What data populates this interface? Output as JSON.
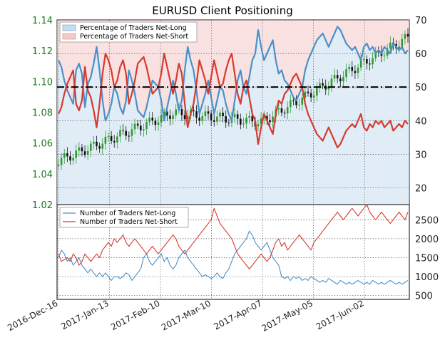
{
  "title": "EURUSD Client Positioning",
  "colors": {
    "long_fill": "#c7dcef",
    "short_fill": "#f6c9c9",
    "long_line": "#4a90c8",
    "short_line": "#d63a2f",
    "candle_up": "#2e9b2e",
    "candle_down": "#111111",
    "left_axis": "#1a7a1a"
  },
  "chart_data": [
    {
      "type": "line",
      "panel": "top",
      "title": "EURUSD Client Positioning",
      "y_left": {
        "ticks": [
          "1.02",
          "1.04",
          "1.06",
          "1.08",
          "1.10",
          "1.12",
          "1.14"
        ],
        "ylim": [
          1.02,
          1.14
        ]
      },
      "y_right": {
        "ticks": [
          "20",
          "30",
          "40",
          "50",
          "60",
          "70"
        ],
        "ylim": [
          15,
          70
        ]
      },
      "reference_line": 50,
      "legend": [
        "Percentage of Traders Net-Long",
        "Percentage of Traders Net-Short"
      ],
      "legend_position": "top-left",
      "x_ticks": [
        "2016-Dec-16",
        "2017-Jan-13",
        "2017-Feb-10",
        "2017-Mar-10",
        "2017-Apr-07",
        "2017-May-05",
        "2017-Jun-02"
      ],
      "series": [
        {
          "name": "Percentage of Traders Net-Long",
          "color": "#4a90c8",
          "values": [
            58,
            56,
            52,
            49,
            47,
            45,
            55,
            57,
            54,
            44,
            51,
            53,
            57,
            62,
            55,
            46,
            40,
            42,
            45,
            50,
            48,
            44,
            42,
            46,
            55,
            52,
            48,
            43,
            42,
            41,
            44,
            48,
            52,
            51,
            50,
            46,
            40,
            44,
            48,
            52,
            48,
            43,
            46,
            55,
            62,
            58,
            55,
            49,
            42,
            45,
            48,
            52,
            47,
            42,
            46,
            50,
            49,
            45,
            42,
            40,
            46,
            52,
            55,
            50,
            48,
            53,
            58,
            60,
            67,
            62,
            58,
            60,
            62,
            64,
            58,
            54,
            55,
            52,
            51,
            49,
            47,
            46,
            48,
            50,
            55,
            58,
            60,
            62,
            64,
            65,
            66,
            64,
            62,
            64,
            66,
            68,
            67,
            65,
            63,
            62,
            61,
            62,
            60,
            58,
            62,
            63,
            61,
            62,
            60,
            61,
            60,
            62,
            61,
            60,
            63,
            62,
            61,
            62,
            60,
            61
          ]
        },
        {
          "name": "Percentage of Traders Net-Short",
          "color": "#d63a2f",
          "values": [
            42,
            44,
            48,
            51,
            53,
            55,
            45,
            43,
            46,
            56,
            49,
            47,
            43,
            38,
            45,
            54,
            60,
            58,
            55,
            50,
            52,
            56,
            58,
            54,
            45,
            48,
            52,
            57,
            58,
            59,
            56,
            52,
            48,
            49,
            50,
            54,
            60,
            56,
            52,
            48,
            52,
            57,
            54,
            45,
            38,
            42,
            45,
            51,
            58,
            55,
            52,
            48,
            53,
            58,
            54,
            50,
            51,
            55,
            58,
            60,
            54,
            48,
            45,
            50,
            52,
            47,
            42,
            40,
            33,
            38,
            42,
            40,
            38,
            36,
            42,
            46,
            45,
            48,
            49,
            51,
            53,
            54,
            52,
            50,
            45,
            42,
            40,
            38,
            36,
            35,
            34,
            36,
            38,
            36,
            34,
            32,
            33,
            35,
            37,
            38,
            39,
            38,
            40,
            42,
            38,
            37,
            39,
            38,
            40,
            39,
            40,
            38,
            39,
            40,
            37,
            38,
            39,
            38,
            40,
            39
          ]
        }
      ]
    },
    {
      "type": "line",
      "panel": "bottom",
      "y_right": {
        "ticks": [
          "500",
          "1000",
          "1500",
          "2000",
          "2500"
        ],
        "ylim": [
          400,
          2900
        ]
      },
      "legend": [
        "Number of Traders Net-Long",
        "Number of Traders Net-Short"
      ],
      "legend_position": "top-left",
      "x_ticks": [
        "2016-Dec-16",
        "2017-Jan-13",
        "2017-Feb-10",
        "2017-Mar-10",
        "2017-Apr-07",
        "2017-May-05",
        "2017-Jun-02"
      ],
      "series": [
        {
          "name": "Number of Traders Net-Long",
          "color": "#4a90c8",
          "values": [
            1500,
            1700,
            1600,
            1400,
            1500,
            1300,
            1400,
            1500,
            1300,
            1200,
            1100,
            1200,
            1100,
            1000,
            1100,
            1000,
            1100,
            1000,
            900,
            1000,
            1000,
            950,
            1000,
            1100,
            1050,
            900,
            1000,
            1100,
            1200,
            1500,
            1600,
            1400,
            1300,
            1400,
            1500,
            1600,
            1400,
            1500,
            1300,
            1200,
            1300,
            1500,
            1600,
            1700,
            1500,
            1400,
            1300,
            1200,
            1100,
            1000,
            1050,
            1000,
            950,
            1000,
            1100,
            1000,
            950,
            1100,
            1200,
            1400,
            1600,
            1700,
            1800,
            1900,
            2000,
            2200,
            2100,
            1900,
            1800,
            1700,
            1800,
            1900,
            1700,
            1500,
            1400,
            1300,
            1000,
            950,
            1000,
            900,
            1000,
            950,
            1000,
            900,
            950,
            900,
            1000,
            950,
            900,
            850,
            900,
            850,
            950,
            900,
            850,
            800,
            900,
            850,
            800,
            850,
            800,
            850,
            900,
            850,
            800,
            850,
            800,
            900,
            850,
            800,
            850,
            800,
            850,
            900,
            850,
            800,
            850,
            800,
            850,
            900
          ]
        },
        {
          "name": "Number of Traders Net-Short",
          "color": "#d63a2f",
          "values": [
            1600,
            1400,
            1450,
            1500,
            1400,
            1600,
            1500,
            1300,
            1400,
            1600,
            1500,
            1400,
            1500,
            1600,
            1500,
            1700,
            1800,
            1900,
            1800,
            2000,
            1900,
            2000,
            2100,
            1900,
            1800,
            1900,
            2000,
            1900,
            1800,
            1700,
            1600,
            1700,
            1800,
            1700,
            1600,
            1700,
            1800,
            1900,
            2000,
            2100,
            2000,
            1800,
            1700,
            1600,
            1700,
            1800,
            1900,
            2000,
            2100,
            2200,
            2300,
            2400,
            2500,
            2800,
            2600,
            2400,
            2300,
            2200,
            2100,
            2000,
            1800,
            1600,
            1500,
            1400,
            1300,
            1200,
            1300,
            1400,
            1500,
            1600,
            1500,
            1400,
            1500,
            1700,
            1900,
            2000,
            1800,
            1900,
            1700,
            1800,
            1900,
            2000,
            2100,
            2000,
            1900,
            1800,
            1700,
            1900,
            2000,
            2100,
            2200,
            2300,
            2400,
            2500,
            2600,
            2700,
            2600,
            2500,
            2600,
            2700,
            2800,
            2700,
            2600,
            2700,
            2800,
            2900,
            2700,
            2600,
            2500,
            2600,
            2700,
            2600,
            2500,
            2400,
            2500,
            2600,
            2700,
            2600,
            2500,
            2700
          ]
        }
      ]
    }
  ]
}
